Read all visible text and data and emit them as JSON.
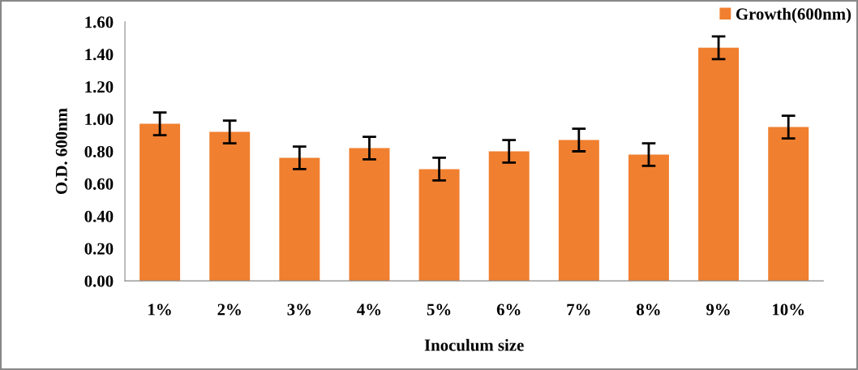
{
  "chart_data": {
    "type": "bar",
    "xlabel": "Inoculum size",
    "ylabel": "O.D. 600nm",
    "categories": [
      "1%",
      "2%",
      "3%",
      "4%",
      "5%",
      "6%",
      "7%",
      "8%",
      "9%",
      "10%"
    ],
    "series": [
      {
        "name": "Growth(600nm)",
        "color": "#f07f2f",
        "values": [
          0.97,
          0.92,
          0.76,
          0.82,
          0.69,
          0.8,
          0.87,
          0.78,
          1.44,
          0.95
        ],
        "errors": [
          0.07,
          0.07,
          0.07,
          0.07,
          0.07,
          0.07,
          0.07,
          0.07,
          0.07,
          0.07
        ]
      }
    ],
    "ylim": [
      0,
      1.6
    ],
    "yticks": [
      {
        "value": 0,
        "label": "0.00"
      },
      {
        "value": 0.2,
        "label": "0.20"
      },
      {
        "value": 0.4,
        "label": "0.40"
      },
      {
        "value": 0.6,
        "label": "0.60"
      },
      {
        "value": 0.8,
        "label": "0.80"
      },
      {
        "value": 1.0,
        "label": "1.00"
      },
      {
        "value": 1.2,
        "label": "1.20"
      },
      {
        "value": 1.4,
        "label": "1.40"
      },
      {
        "value": 1.6,
        "label": "1.60"
      }
    ],
    "grid": false,
    "legend": "top right"
  }
}
